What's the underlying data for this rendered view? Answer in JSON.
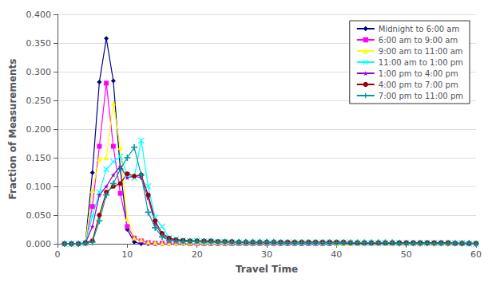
{
  "chart_data": {
    "type": "line",
    "xlabel": "Travel Time",
    "ylabel": "Fraction of Measurements",
    "xlim": [
      0,
      60
    ],
    "ylim": [
      0,
      0.4
    ],
    "xticks": [
      0,
      10,
      20,
      30,
      40,
      50,
      60
    ],
    "yticks": [
      {
        "value": 0,
        "label": "0.000"
      },
      {
        "value": 0.05,
        "label": "0.050"
      },
      {
        "value": 0.1,
        "label": "0.100"
      },
      {
        "value": 0.15,
        "label": "0.150"
      },
      {
        "value": 0.2,
        "label": "0.200"
      },
      {
        "value": 0.25,
        "label": "0.250"
      },
      {
        "value": 0.3,
        "label": "0.300"
      },
      {
        "value": 0.35,
        "label": "0.350"
      },
      {
        "value": 0.4,
        "label": "0.400"
      }
    ],
    "grid": true,
    "legend": "upper right",
    "x": [
      1,
      2,
      3,
      4,
      5,
      6,
      7,
      8,
      9,
      10,
      11,
      12,
      13,
      14,
      15,
      16,
      17,
      18,
      19,
      20,
      21,
      22,
      23,
      24,
      25,
      26,
      27,
      28,
      29,
      30,
      31,
      32,
      33,
      34,
      35,
      36,
      37,
      38,
      39,
      40,
      41,
      42,
      43,
      44,
      45,
      46,
      47,
      48,
      49,
      50,
      51,
      52,
      53,
      54,
      55,
      56,
      57,
      58,
      59,
      60
    ],
    "series": [
      {
        "name": "Midnight to 6:00 am",
        "color": "#000080",
        "marker": "diamond",
        "line_style": "solid",
        "values": [
          0.0,
          0.0,
          0.0,
          0.001,
          0.124,
          0.282,
          0.358,
          0.284,
          0.131,
          0.025,
          0.003,
          0.0,
          0.0,
          0.0,
          0.0,
          0.0,
          0.0,
          0.0,
          0.0,
          0.0,
          0.0,
          0.0,
          0.0,
          0.0,
          0.0,
          0.0,
          0.0,
          0.0,
          0.0,
          0.0,
          0.0,
          0.0,
          0.0,
          0.0,
          0.0,
          0.0,
          0.0,
          0.0,
          0.0,
          0.0,
          0.0,
          0.0,
          0.0,
          0.0,
          0.0,
          0.0,
          0.0,
          0.0,
          0.0,
          0.0,
          0.0,
          0.0,
          0.0,
          0.0,
          0.0,
          0.0,
          0.0,
          0.0,
          0.0,
          0.0
        ]
      },
      {
        "name": "6:00 am to 9:00 am",
        "color": "#FF00FF",
        "marker": "square",
        "line_style": "solid",
        "values": [
          0.0,
          0.0,
          0.0,
          0.001,
          0.065,
          0.17,
          0.28,
          0.17,
          0.088,
          0.03,
          0.01,
          0.005,
          0.002,
          0.001,
          0.001,
          0.001,
          0.001,
          0.001,
          0.0,
          0.0,
          0.0,
          0.0,
          0.0,
          0.0,
          0.0,
          0.0,
          0.0,
          0.0,
          0.0,
          0.0,
          0.0,
          0.0,
          0.0,
          0.0,
          0.0,
          0.0,
          0.0,
          0.0,
          0.0,
          0.0,
          0.0,
          0.0,
          0.0,
          0.0,
          0.0,
          0.0,
          0.0,
          0.0,
          0.0,
          0.0,
          0.0,
          0.0,
          0.0,
          0.0,
          0.0,
          0.0,
          0.0,
          0.0,
          0.0,
          0.0
        ]
      },
      {
        "name": "9:00 am to 11:00 am",
        "color": "#FFFF00",
        "marker": "triangle",
        "line_style": "solid",
        "values": [
          0.0,
          0.0,
          0.0,
          0.001,
          0.093,
          0.148,
          0.15,
          0.245,
          0.168,
          0.043,
          0.01,
          0.007,
          0.003,
          0.002,
          0.001,
          0.001,
          0.001,
          0.001,
          0.001,
          0.001,
          0.001,
          0.001,
          0.001,
          0.001,
          0.001,
          0.001,
          0.001,
          0.001,
          0.001,
          0.001,
          0.001,
          0.001,
          0.001,
          0.001,
          0.001,
          0.001,
          0.001,
          0.001,
          0.001,
          0.0,
          0.0,
          0.0,
          0.0,
          0.0,
          0.0,
          0.0,
          0.0,
          0.0,
          0.0,
          0.0,
          0.0,
          0.0,
          0.0,
          0.0,
          0.0,
          0.0,
          0.0,
          0.0,
          0.0,
          0.0
        ]
      },
      {
        "name": "11:00 am to 1:00 pm",
        "color": "#00FFFF",
        "marker": "x",
        "line_style": "solid",
        "values": [
          0.0,
          0.0,
          0.0,
          0.001,
          0.048,
          0.09,
          0.13,
          0.143,
          0.152,
          0.12,
          0.115,
          0.18,
          0.1,
          0.045,
          0.03,
          0.01,
          0.008,
          0.006,
          0.005,
          0.005,
          0.004,
          0.004,
          0.003,
          0.003,
          0.002,
          0.002,
          0.002,
          0.002,
          0.002,
          0.002,
          0.002,
          0.002,
          0.002,
          0.002,
          0.002,
          0.002,
          0.002,
          0.002,
          0.002,
          0.002,
          0.002,
          0.002,
          0.001,
          0.001,
          0.001,
          0.001,
          0.001,
          0.001,
          0.001,
          0.001,
          0.001,
          0.001,
          0.001,
          0.001,
          0.001,
          0.001,
          0.001,
          0.001,
          0.0,
          0.0
        ]
      },
      {
        "name": "1:00 pm to 4:00 pm",
        "color": "#9900CC",
        "marker": "star",
        "line_style": "solid",
        "values": [
          0.0,
          0.0,
          0.0,
          0.001,
          0.03,
          0.085,
          0.1,
          0.12,
          0.135,
          0.115,
          0.118,
          0.115,
          0.08,
          0.035,
          0.015,
          0.008,
          0.006,
          0.005,
          0.005,
          0.005,
          0.004,
          0.004,
          0.003,
          0.003,
          0.003,
          0.003,
          0.002,
          0.002,
          0.002,
          0.002,
          0.002,
          0.002,
          0.002,
          0.002,
          0.002,
          0.002,
          0.002,
          0.002,
          0.002,
          0.002,
          0.001,
          0.001,
          0.001,
          0.001,
          0.001,
          0.001,
          0.001,
          0.001,
          0.001,
          0.001,
          0.001,
          0.001,
          0.001,
          0.001,
          0.001,
          0.001,
          0.001,
          0.0,
          0.0,
          0.0
        ]
      },
      {
        "name": "4:00 pm to 7:00 pm",
        "color": "#990000",
        "marker": "circle",
        "line_style": "solid",
        "values": [
          0.0,
          0.0,
          0.0,
          0.002,
          0.005,
          0.05,
          0.09,
          0.1,
          0.105,
          0.122,
          0.118,
          0.12,
          0.085,
          0.04,
          0.018,
          0.01,
          0.007,
          0.006,
          0.005,
          0.005,
          0.005,
          0.005,
          0.004,
          0.004,
          0.004,
          0.003,
          0.003,
          0.003,
          0.003,
          0.003,
          0.003,
          0.003,
          0.003,
          0.003,
          0.003,
          0.003,
          0.003,
          0.003,
          0.003,
          0.003,
          0.003,
          0.002,
          0.002,
          0.002,
          0.002,
          0.002,
          0.002,
          0.002,
          0.002,
          0.002,
          0.002,
          0.002,
          0.002,
          0.002,
          0.002,
          0.002,
          0.001,
          0.001,
          0.001,
          0.001
        ]
      },
      {
        "name": "7:00 pm to 11:00 pm",
        "color": "#009999",
        "marker": "plus",
        "line_style": "solid",
        "values": [
          0.0,
          0.0,
          0.0,
          0.001,
          0.003,
          0.04,
          0.085,
          0.105,
          0.13,
          0.15,
          0.168,
          0.12,
          0.055,
          0.028,
          0.012,
          0.006,
          0.005,
          0.004,
          0.004,
          0.004,
          0.003,
          0.003,
          0.003,
          0.003,
          0.003,
          0.003,
          0.003,
          0.003,
          0.003,
          0.003,
          0.003,
          0.002,
          0.002,
          0.002,
          0.002,
          0.002,
          0.002,
          0.002,
          0.002,
          0.002,
          0.002,
          0.002,
          0.002,
          0.002,
          0.002,
          0.002,
          0.002,
          0.002,
          0.001,
          0.001,
          0.001,
          0.001,
          0.001,
          0.001,
          0.001,
          0.001,
          0.001,
          0.001,
          0.001,
          0.0
        ]
      }
    ]
  }
}
